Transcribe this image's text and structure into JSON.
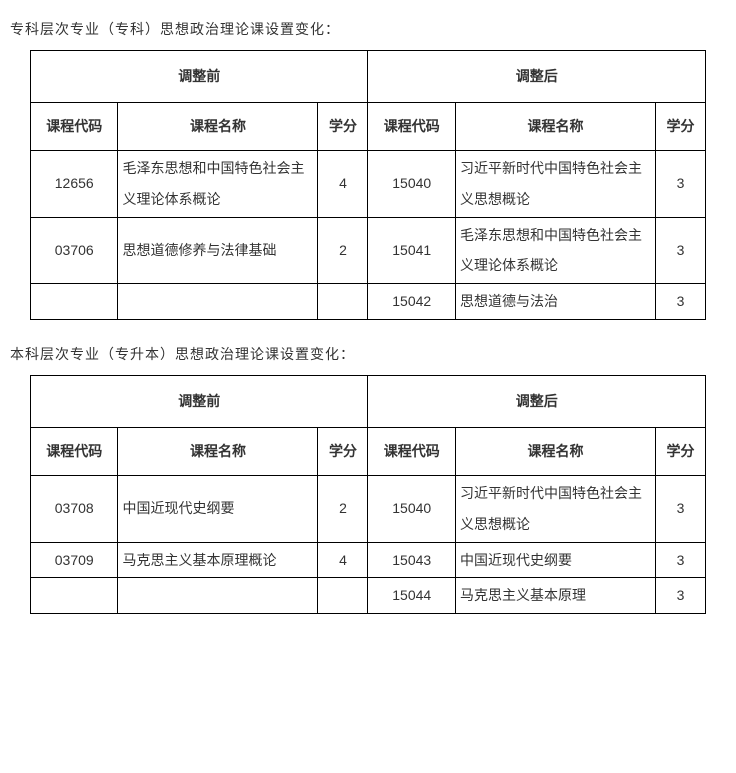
{
  "sections": [
    {
      "title": "专科层次专业（专科）思想政治理论课设置变化：",
      "groupHeaders": {
        "before": "调整前",
        "after": "调整后"
      },
      "colHeaders": {
        "code": "课程代码",
        "name": "课程名称",
        "credit": "学分"
      },
      "rows": [
        {
          "before": {
            "code": "12656",
            "name": "毛泽东思想和中国特色社会主义理论体系概论",
            "credit": "4"
          },
          "after": {
            "code": "15040",
            "name": "习近平新时代中国特色社会主义思想概论",
            "credit": "3"
          }
        },
        {
          "before": {
            "code": "03706",
            "name": "思想道德修养与法律基础",
            "credit": "2"
          },
          "after": {
            "code": "15041",
            "name": "毛泽东思想和中国特色社会主义理论体系概论",
            "credit": "3"
          }
        },
        {
          "before": {
            "code": "",
            "name": "",
            "credit": ""
          },
          "after": {
            "code": "15042",
            "name": "思想道德与法治",
            "credit": "3"
          }
        }
      ]
    },
    {
      "title": "本科层次专业（专升本）思想政治理论课设置变化：",
      "groupHeaders": {
        "before": "调整前",
        "after": "调整后"
      },
      "colHeaders": {
        "code": "课程代码",
        "name": "课程名称",
        "credit": "学分"
      },
      "rows": [
        {
          "before": {
            "code": "03708",
            "name": "中国近现代史纲要",
            "credit": "2"
          },
          "after": {
            "code": "15040",
            "name": "习近平新时代中国特色社会主义思想概论",
            "credit": "3"
          }
        },
        {
          "before": {
            "code": "03709",
            "name": "马克思主义基本原理概论",
            "credit": "4"
          },
          "after": {
            "code": "15043",
            "name": "中国近现代史纲要",
            "credit": "3"
          }
        },
        {
          "before": {
            "code": "",
            "name": "",
            "credit": ""
          },
          "after": {
            "code": "15044",
            "name": "马克思主义基本原理",
            "credit": "3"
          }
        }
      ]
    }
  ]
}
